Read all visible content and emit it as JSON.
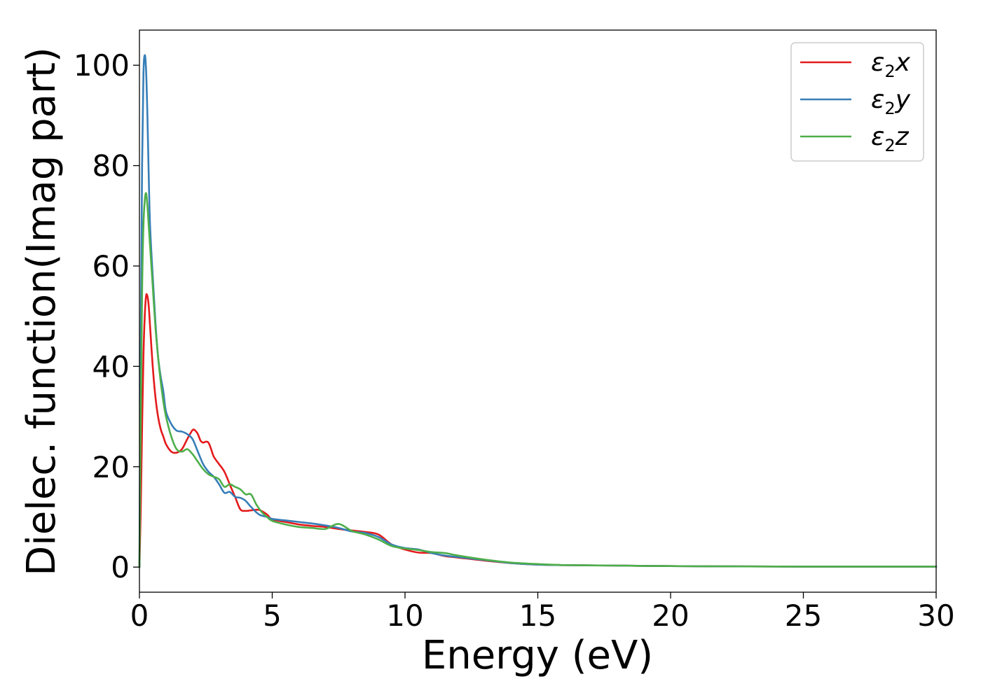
{
  "chart_data": {
    "type": "line",
    "xlabel": "Energy (eV)",
    "ylabel": "Dielec. function(Imag part)",
    "xlim": [
      0,
      30
    ],
    "ylim": [
      -5,
      107
    ],
    "x_ticks": [
      0,
      5,
      10,
      15,
      20,
      25,
      30
    ],
    "y_ticks": [
      0,
      20,
      40,
      60,
      80,
      100
    ],
    "x_tick_labels": [
      "0",
      "5",
      "10",
      "15",
      "20",
      "25",
      "30"
    ],
    "y_tick_labels": [
      "0",
      "20",
      "40",
      "60",
      "80",
      "100"
    ],
    "grid": false,
    "legend_position": "top-right",
    "series": [
      {
        "name": "ε2x",
        "legend_base": "ε",
        "legend_sub": "2",
        "legend_suffix": "x",
        "color": "#e41a1c",
        "x": [
          0,
          0.05,
          0.1,
          0.15,
          0.2,
          0.25,
          0.3,
          0.35,
          0.4,
          0.5,
          0.6,
          0.7,
          0.8,
          0.9,
          1.0,
          1.2,
          1.4,
          1.6,
          1.8,
          2.0,
          2.1,
          2.2,
          2.3,
          2.4,
          2.5,
          2.6,
          2.7,
          2.8,
          3.0,
          3.2,
          3.4,
          3.6,
          3.8,
          4.0,
          4.2,
          4.5,
          4.8,
          5.0,
          5.5,
          6.0,
          6.5,
          7.0,
          7.5,
          8.0,
          8.5,
          9.0,
          9.5,
          10.0,
          10.5,
          11.0,
          11.5,
          12.0,
          13.0,
          14.0,
          15.0,
          16.0,
          18.0,
          20.0,
          22.0,
          25.0,
          28.0,
          30.0
        ],
        "y": [
          0,
          12,
          28,
          42,
          50,
          54,
          54,
          52,
          48,
          40,
          34,
          30,
          27.5,
          26,
          24.5,
          23,
          22.8,
          23.5,
          25.5,
          27.3,
          27.2,
          26.5,
          25.2,
          24.8,
          25,
          24.8,
          23.5,
          22,
          20.5,
          19,
          16.5,
          14,
          11.5,
          11.2,
          11.3,
          11.4,
          10.5,
          9.5,
          9.0,
          8.5,
          8.2,
          8.0,
          7.6,
          7.3,
          7.0,
          6.5,
          4.5,
          3.5,
          2.9,
          2.8,
          2.2,
          1.9,
          1.3,
          0.8,
          0.5,
          0.4,
          0.3,
          0.2,
          0.15,
          0.1,
          0.1,
          0.1
        ]
      },
      {
        "name": "ε2y",
        "legend_base": "ε",
        "legend_sub": "2",
        "legend_suffix": "y",
        "color": "#377eb8",
        "x": [
          0,
          0.05,
          0.1,
          0.15,
          0.2,
          0.25,
          0.3,
          0.35,
          0.4,
          0.5,
          0.6,
          0.7,
          0.8,
          0.9,
          1.0,
          1.2,
          1.4,
          1.6,
          1.8,
          2.0,
          2.2,
          2.4,
          2.6,
          2.8,
          3.0,
          3.2,
          3.4,
          3.6,
          3.8,
          4.0,
          4.2,
          4.5,
          4.8,
          5.0,
          5.5,
          6.0,
          6.5,
          7.0,
          7.5,
          8.0,
          8.5,
          9.0,
          9.5,
          10.0,
          10.5,
          11.0,
          11.5,
          12.0,
          13.0,
          14.0,
          15.0,
          16.0,
          18.0,
          20.0,
          22.0,
          25.0,
          28.0,
          30.0
        ],
        "y": [
          0,
          45,
          80,
          98,
          102,
          99,
          90,
          78,
          68,
          58,
          49,
          42,
          38,
          35,
          31,
          28.5,
          27.2,
          27,
          26.5,
          25.5,
          23,
          20.5,
          19,
          18,
          16.5,
          14.8,
          15,
          14,
          13.8,
          13.2,
          12,
          10.5,
          10.0,
          9.6,
          9.3,
          9.0,
          8.7,
          8.3,
          7.8,
          7.1,
          6.8,
          6.0,
          4.5,
          3.8,
          3.5,
          2.8,
          2.3,
          2.0,
          1.4,
          0.8,
          0.5,
          0.4,
          0.3,
          0.2,
          0.15,
          0.1,
          0.1,
          0.1
        ]
      },
      {
        "name": "ε2z",
        "legend_base": "ε",
        "legend_sub": "2",
        "legend_suffix": "z",
        "color": "#4daf4a",
        "x": [
          0,
          0.05,
          0.1,
          0.15,
          0.2,
          0.25,
          0.3,
          0.35,
          0.4,
          0.5,
          0.6,
          0.7,
          0.8,
          0.9,
          1.0,
          1.2,
          1.4,
          1.6,
          1.8,
          2.0,
          2.2,
          2.4,
          2.6,
          2.8,
          3.0,
          3.2,
          3.4,
          3.6,
          3.8,
          4.0,
          4.2,
          4.4,
          4.6,
          4.8,
          5.0,
          5.5,
          6.0,
          6.5,
          7.0,
          7.5,
          8.0,
          8.5,
          9.0,
          9.5,
          10.0,
          10.5,
          11.0,
          11.5,
          12.0,
          13.0,
          14.0,
          15.0,
          16.0,
          18.0,
          20.0,
          22.0,
          25.0,
          28.0,
          30.0
        ],
        "y": [
          0,
          30,
          55,
          68,
          73,
          74.5,
          72,
          68,
          64,
          56,
          48,
          42,
          37,
          33,
          30,
          26,
          23.5,
          23.0,
          23.5,
          22.5,
          21,
          19.5,
          18.5,
          18,
          17.5,
          16,
          16.5,
          16,
          15.5,
          14.5,
          14.5,
          12.5,
          11,
          10,
          9.2,
          8.5,
          8.0,
          7.8,
          7.6,
          8.6,
          7.2,
          6.5,
          5.5,
          4.2,
          3.7,
          3.4,
          3.0,
          2.8,
          2.3,
          1.5,
          0.9,
          0.6,
          0.4,
          0.3,
          0.2,
          0.15,
          0.1,
          0.1,
          0.1
        ]
      }
    ]
  }
}
